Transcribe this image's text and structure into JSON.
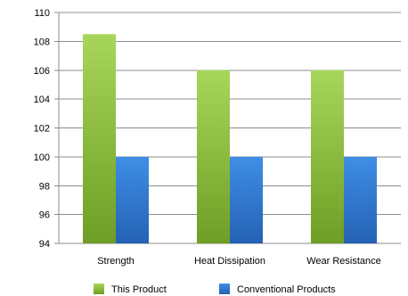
{
  "chart_data": {
    "type": "bar",
    "categories": [
      "Strength",
      "Heat Dissipation",
      "Wear Resistance"
    ],
    "series": [
      {
        "name": "This Product",
        "values": [
          108.5,
          106,
          106
        ],
        "color": "#7fb22e"
      },
      {
        "name": "Conventional Products",
        "values": [
          100,
          100,
          100
        ],
        "color": "#2f78d0"
      }
    ],
    "yticks": [
      94,
      96,
      98,
      100,
      102,
      104,
      106,
      108,
      110
    ],
    "ylim": [
      94,
      110
    ],
    "grid": true,
    "legend_position": "bottom"
  }
}
